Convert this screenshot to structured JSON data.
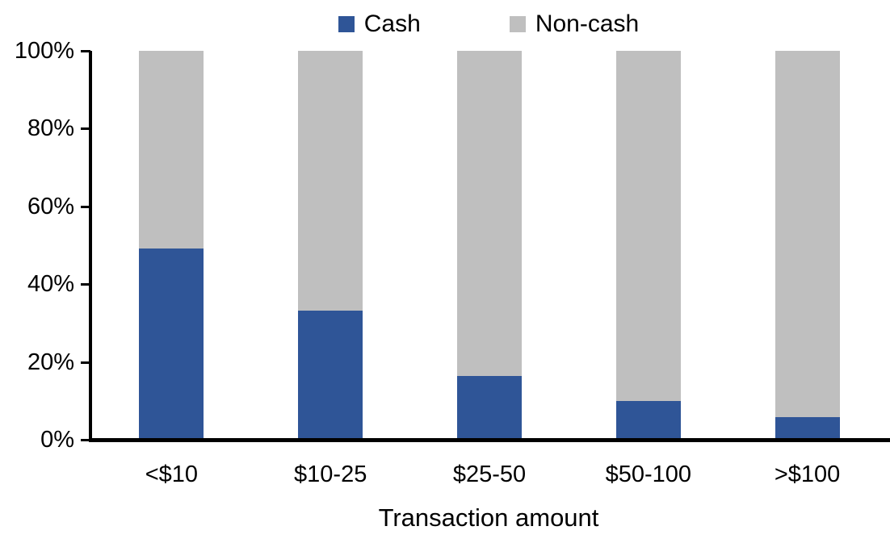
{
  "chart_data": {
    "type": "bar",
    "stacked": true,
    "percent_stacked": true,
    "title": "",
    "categories": [
      "<$10",
      "$10-25",
      "$25-50",
      "$50-100",
      ">$100"
    ],
    "series": [
      {
        "name": "Cash",
        "color": "#2F5597",
        "values": [
          49,
          33,
          16,
          9.5,
          5.5
        ]
      },
      {
        "name": "Non-cash",
        "color": "#BFBFBF",
        "values": [
          51,
          67,
          84,
          90.5,
          94.5
        ]
      }
    ],
    "xlabel": "Transaction amount",
    "ylabel": "",
    "ylim": [
      0,
      100
    ],
    "y_ticks": [
      "0%",
      "20%",
      "40%",
      "60%",
      "80%",
      "100%"
    ],
    "grid": false,
    "legend_position": "top-center"
  },
  "colors": {
    "axis": "#000000",
    "text": "#000000",
    "background": "#FFFFFF"
  }
}
